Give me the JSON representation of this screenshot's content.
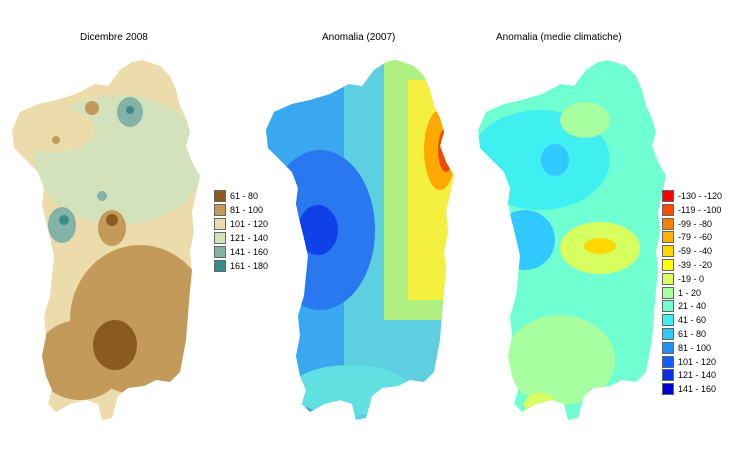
{
  "maps": [
    {
      "title": "Dicembre 2008",
      "base_color": "#e8d6a3",
      "legend": [
        {
          "label": "61 - 80",
          "color": "#8b5a1e"
        },
        {
          "label": "81 - 100",
          "color": "#c39a5a"
        },
        {
          "label": "101 - 120",
          "color": "#ecdcab"
        },
        {
          "label": "121 - 140",
          "color": "#d3e2bb"
        },
        {
          "label": "141 - 160",
          "color": "#84b2a6"
        },
        {
          "label": "161 - 180",
          "color": "#3a8a8a"
        }
      ]
    },
    {
      "title": "Anomalia (2007)",
      "base_color": "#5ecfe0",
      "legend": []
    },
    {
      "title": "Anomalia (medie climatiche)",
      "base_color": "#8fe8c8",
      "legend": [
        {
          "label": "-130 - -120",
          "color": "#ff0000"
        },
        {
          "label": "-119 - -100",
          "color": "#ff4a00"
        },
        {
          "label": "-99 - -80",
          "color": "#ff8000"
        },
        {
          "label": "-79 - -60",
          "color": "#ffb000"
        },
        {
          "label": "-59 - -40",
          "color": "#ffd800"
        },
        {
          "label": "-39 - -20",
          "color": "#ffff00"
        },
        {
          "label": "-19 - 0",
          "color": "#d8ff60"
        },
        {
          "label": "1 - 20",
          "color": "#a8ffa0"
        },
        {
          "label": "21 - 40",
          "color": "#70ffd0"
        },
        {
          "label": "41 - 60",
          "color": "#40f0f0"
        },
        {
          "label": "61 - 80",
          "color": "#30c8ff"
        },
        {
          "label": "81 - 100",
          "color": "#2090ff"
        },
        {
          "label": "101 - 120",
          "color": "#1060ff"
        },
        {
          "label": "121 - 140",
          "color": "#0830e0"
        },
        {
          "label": "141 - 160",
          "color": "#0000d0"
        }
      ]
    }
  ]
}
